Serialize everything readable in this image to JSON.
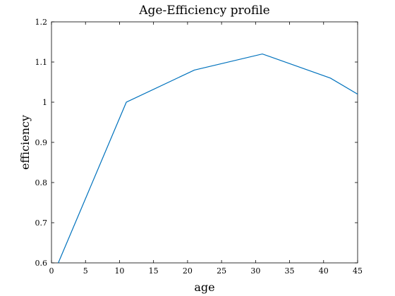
{
  "chart_data": {
    "type": "line",
    "title": "Age-Efficiency profile",
    "xlabel": "age",
    "ylabel": "efficiency",
    "xlim": [
      0,
      45
    ],
    "ylim": [
      0.6,
      1.2
    ],
    "xticks": [
      0,
      5,
      10,
      15,
      20,
      25,
      30,
      35,
      40,
      45
    ],
    "xtick_labels": [
      "0",
      "5",
      "10",
      "15",
      "20",
      "25",
      "30",
      "35",
      "40",
      "45"
    ],
    "yticks": [
      0.6,
      0.7,
      0.8,
      0.9,
      1.0,
      1.1,
      1.2
    ],
    "ytick_labels": [
      "0.6",
      "0.7",
      "0.8",
      "0.9",
      "1",
      "1.1",
      "1.2"
    ],
    "grid": false,
    "series": [
      {
        "color": "#0072bd",
        "x": [
          1,
          11,
          21,
          31,
          41,
          45
        ],
        "y": [
          0.6,
          1.0,
          1.08,
          1.12,
          1.06,
          1.02
        ]
      }
    ]
  }
}
